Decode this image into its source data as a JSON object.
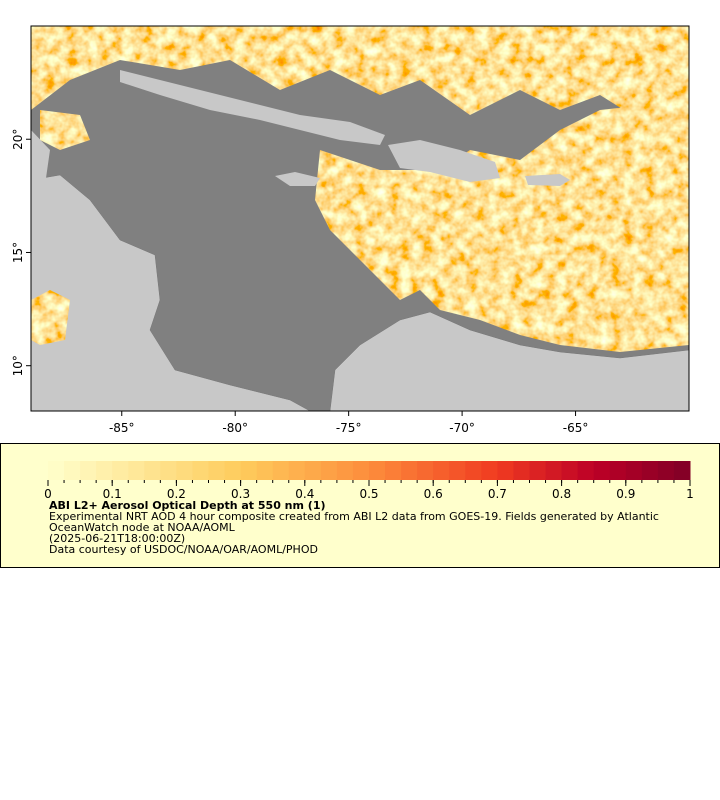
{
  "map": {
    "xlim": [
      -89,
      -60
    ],
    "ylim": [
      8,
      25
    ],
    "xticks": [
      {
        "value": -85,
        "label": "-85°"
      },
      {
        "value": -80,
        "label": "-80°"
      },
      {
        "value": -75,
        "label": "-75°"
      },
      {
        "value": -70,
        "label": "-70°"
      },
      {
        "value": -65,
        "label": "-65°"
      }
    ],
    "yticks": [
      {
        "value": 10,
        "label": "10°"
      },
      {
        "value": 15,
        "label": "15°"
      },
      {
        "value": 20,
        "label": "20°"
      }
    ]
  },
  "legend": {
    "colorbar": {
      "range": [
        0,
        1
      ],
      "ticks": [
        0,
        0.1,
        0.2,
        0.3,
        0.4,
        0.5,
        0.6,
        0.7,
        0.8,
        0.9,
        1
      ]
    },
    "title": "ABI L2+ Aerosol Optical Depth at 550 nm (1)",
    "description": "Experimental NRT AOD 4 hour composite created from ABI L2 data from GOES-19. Fields generated by Atlantic OceanWatch node at NOAA/AOML",
    "time": "(2025-06-21T18:00:00Z)",
    "credit": "Data courtesy of USDOC/NOAA/OAR/AOML/PHOD"
  }
}
